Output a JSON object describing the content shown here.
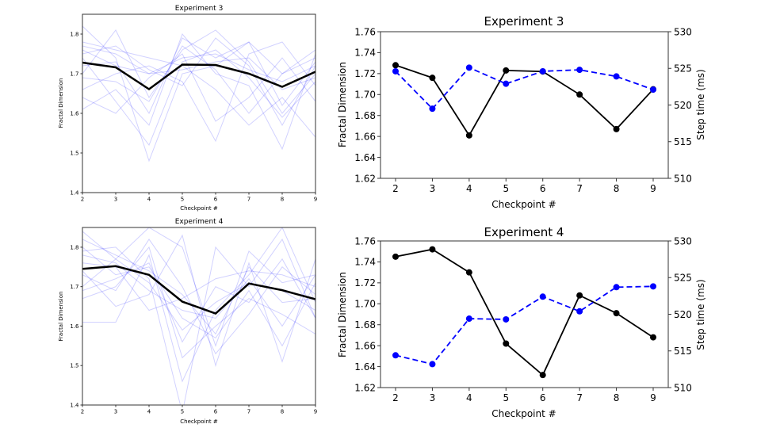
{
  "chart_data": [
    {
      "type": "line",
      "title": "Experiment 3",
      "xlabel": "Checkpoint #",
      "ylabel": "Fractal Dimension",
      "x": [
        2,
        3,
        4,
        5,
        6,
        7,
        8,
        9
      ],
      "xlim": [
        2,
        9
      ],
      "ylim": [
        1.4,
        1.85
      ],
      "yticks": [
        1.4,
        1.5,
        1.6,
        1.7,
        1.8
      ],
      "grid": false,
      "mean": {
        "color": "#000000",
        "values": [
          1.728,
          1.716,
          1.661,
          1.723,
          1.722,
          1.7,
          1.667,
          1.705
        ]
      },
      "runs_color": "#0000ff",
      "runs": [
        [
          1.76,
          1.72,
          1.7,
          1.74,
          1.75,
          1.71,
          1.68,
          1.72
        ],
        [
          1.82,
          1.74,
          1.48,
          1.7,
          1.72,
          1.78,
          1.7,
          1.74
        ],
        [
          1.7,
          1.81,
          1.64,
          1.76,
          1.81,
          1.73,
          1.6,
          1.7
        ],
        [
          1.66,
          1.7,
          1.72,
          1.68,
          1.53,
          1.75,
          1.78,
          1.67
        ],
        [
          1.61,
          1.66,
          1.57,
          1.8,
          1.7,
          1.67,
          1.51,
          1.75
        ],
        [
          1.74,
          1.63,
          1.52,
          1.73,
          1.76,
          1.69,
          1.59,
          1.68
        ],
        [
          1.78,
          1.76,
          1.74,
          1.72,
          1.66,
          1.57,
          1.64,
          1.54
        ],
        [
          1.72,
          1.73,
          1.6,
          1.79,
          1.74,
          1.78,
          1.62,
          1.73
        ],
        [
          1.64,
          1.6,
          1.69,
          1.75,
          1.58,
          1.64,
          1.74,
          1.63
        ],
        [
          1.75,
          1.77,
          1.71,
          1.67,
          1.79,
          1.72,
          1.57,
          1.72
        ],
        [
          1.69,
          1.68,
          1.63,
          1.77,
          1.71,
          1.6,
          1.7,
          1.76
        ],
        [
          1.77,
          1.75,
          1.7,
          1.71,
          1.73,
          1.74,
          1.66,
          1.69
        ]
      ]
    },
    {
      "type": "line",
      "title": "Experiment 3",
      "xlabel": "Checkpoint #",
      "ylabel": "Fractal Dimension",
      "y2label": "Step time (ms)",
      "x": [
        2,
        3,
        4,
        5,
        6,
        7,
        8,
        9
      ],
      "ylim": [
        1.62,
        1.76
      ],
      "yticks": [
        1.62,
        1.64,
        1.66,
        1.68,
        1.7,
        1.72,
        1.74,
        1.76
      ],
      "y2lim": [
        510,
        530
      ],
      "y2ticks": [
        510,
        515,
        520,
        525,
        530
      ],
      "grid": false,
      "series": [
        {
          "axis": "left",
          "style": "solid",
          "color": "#000000",
          "values": [
            1.728,
            1.716,
            1.661,
            1.723,
            1.722,
            1.7,
            1.667,
            1.705
          ]
        },
        {
          "axis": "right",
          "style": "dashed",
          "color": "#0000ff",
          "values": [
            524.6,
            519.5,
            525.1,
            522.9,
            524.6,
            524.8,
            523.9,
            522.1
          ]
        }
      ]
    },
    {
      "type": "line",
      "title": "Experiment 4",
      "xlabel": "Checkpoint #",
      "ylabel": "Fractal Dimension",
      "x": [
        2,
        3,
        4,
        5,
        6,
        7,
        8,
        9
      ],
      "xlim": [
        2,
        9
      ],
      "ylim": [
        1.4,
        1.85
      ],
      "yticks": [
        1.4,
        1.5,
        1.6,
        1.7,
        1.8
      ],
      "grid": false,
      "mean": {
        "color": "#000000",
        "values": [
          1.745,
          1.752,
          1.73,
          1.662,
          1.632,
          1.708,
          1.691,
          1.668
        ]
      },
      "runs_color": "#0000ff",
      "runs": [
        [
          1.84,
          1.77,
          1.85,
          1.8,
          1.55,
          1.79,
          1.71,
          1.73
        ],
        [
          1.61,
          1.61,
          1.78,
          1.46,
          1.64,
          1.73,
          1.85,
          1.66
        ],
        [
          1.79,
          1.8,
          1.72,
          1.38,
          1.8,
          1.7,
          1.82,
          1.62
        ],
        [
          1.74,
          1.65,
          1.68,
          1.83,
          1.5,
          1.76,
          1.51,
          1.77
        ],
        [
          1.67,
          1.7,
          1.8,
          1.52,
          1.6,
          1.67,
          1.63,
          1.58
        ],
        [
          1.76,
          1.75,
          1.64,
          1.67,
          1.72,
          1.74,
          1.73,
          1.7
        ],
        [
          1.8,
          1.73,
          1.75,
          1.62,
          1.57,
          1.69,
          1.55,
          1.71
        ],
        [
          1.7,
          1.77,
          1.71,
          1.59,
          1.66,
          1.71,
          1.69,
          1.64
        ],
        [
          1.73,
          1.69,
          1.82,
          1.7,
          1.53,
          1.63,
          1.75,
          1.68
        ],
        [
          1.78,
          1.76,
          1.69,
          1.64,
          1.62,
          1.72,
          1.6,
          1.73
        ],
        [
          1.69,
          1.72,
          1.76,
          1.56,
          1.7,
          1.66,
          1.77,
          1.62
        ],
        [
          1.82,
          1.78,
          1.74,
          1.68,
          1.58,
          1.75,
          1.66,
          1.67
        ]
      ]
    },
    {
      "type": "line",
      "title": "Experiment 4",
      "xlabel": "Checkpoint #",
      "ylabel": "Fractal Dimension",
      "y2label": "Step time (ms)",
      "x": [
        2,
        3,
        4,
        5,
        6,
        7,
        8,
        9
      ],
      "ylim": [
        1.62,
        1.76
      ],
      "yticks": [
        1.62,
        1.64,
        1.66,
        1.68,
        1.7,
        1.72,
        1.74,
        1.76
      ],
      "y2lim": [
        510,
        530
      ],
      "y2ticks": [
        510,
        515,
        520,
        525,
        530
      ],
      "grid": false,
      "series": [
        {
          "axis": "left",
          "style": "solid",
          "color": "#000000",
          "values": [
            1.745,
            1.752,
            1.73,
            1.662,
            1.632,
            1.708,
            1.691,
            1.668
          ]
        },
        {
          "axis": "right",
          "style": "dashed",
          "color": "#0000ff",
          "values": [
            514.4,
            513.2,
            519.4,
            519.3,
            522.4,
            520.4,
            523.7,
            523.8
          ]
        }
      ]
    }
  ]
}
